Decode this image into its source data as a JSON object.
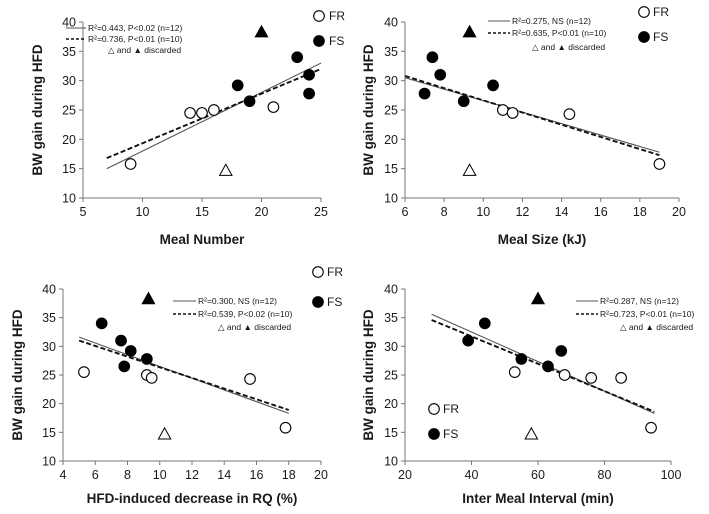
{
  "chart_data": [
    {
      "type": "scatter",
      "xlabel": "Meal Number",
      "ylabel": "BW gain during HFD",
      "xlim": [
        5,
        25
      ],
      "ylim": [
        10,
        40
      ],
      "xticks": [
        "5",
        "10",
        "15",
        "20",
        "25"
      ],
      "yticks": [
        "10",
        "15",
        "20",
        "25",
        "30",
        "35",
        "40"
      ],
      "groups": [
        {
          "label": "FR",
          "marker": "open-circle"
        },
        {
          "label": "FS",
          "marker": "filled-circle"
        }
      ],
      "group_legend_position": "top-right",
      "stats_legend_position": "top-left",
      "series": [
        {
          "name": "FR",
          "marker": "open-circle",
          "x": [
            9,
            14,
            15,
            16,
            21
          ],
          "y": [
            15.8,
            24.5,
            24.5,
            25,
            25.5
          ]
        },
        {
          "name": "FS",
          "marker": "filled-circle",
          "x": [
            18,
            19,
            23,
            24,
            24
          ],
          "y": [
            29.2,
            26.5,
            34,
            31,
            27.8
          ]
        },
        {
          "name": "FR discarded",
          "marker": "open-triangle",
          "x": [
            17
          ],
          "y": [
            14.7
          ]
        },
        {
          "name": "FS discarded",
          "marker": "filled-triangle",
          "x": [
            20
          ],
          "y": [
            38.3
          ]
        }
      ],
      "fits": [
        {
          "label": "R²=0.443, P<0.02 (n=12)",
          "style": "solid",
          "x": [
            7,
            25
          ],
          "y": [
            15,
            33
          ]
        },
        {
          "label": "R²=0.736, P<0.01 (n=10)",
          "style": "dashed",
          "x": [
            7,
            25
          ],
          "y": [
            16.8,
            32
          ]
        }
      ],
      "discard_note": "△ and ▲ discarded"
    },
    {
      "type": "scatter",
      "xlabel": "Meal Size (kJ)",
      "ylabel": "BW gain during HFD",
      "xlim": [
        6,
        20
      ],
      "ylim": [
        10,
        40
      ],
      "xticks": [
        "6",
        "8",
        "10",
        "12",
        "14",
        "16",
        "18",
        "20"
      ],
      "yticks": [
        "10",
        "15",
        "20",
        "25",
        "30",
        "35",
        "40"
      ],
      "groups": [
        {
          "label": "FR",
          "marker": "open-circle"
        },
        {
          "label": "FS",
          "marker": "filled-circle"
        }
      ],
      "group_legend_position": "top-right",
      "stats_legend_position": "top-right",
      "series": [
        {
          "name": "FR",
          "marker": "open-circle",
          "x": [
            11,
            11.5,
            14.4,
            19
          ],
          "y": [
            25,
            24.5,
            24.3,
            15.8
          ]
        },
        {
          "name": "FS",
          "marker": "filled-circle",
          "x": [
            7,
            7.4,
            7.8,
            9,
            10.5
          ],
          "y": [
            27.8,
            34,
            31,
            26.5,
            29.2
          ]
        },
        {
          "name": "FR discarded",
          "marker": "open-triangle",
          "x": [
            9.3
          ],
          "y": [
            14.7
          ]
        },
        {
          "name": "FS discarded",
          "marker": "filled-triangle",
          "x": [
            9.3
          ],
          "y": [
            38.3
          ]
        }
      ],
      "fits": [
        {
          "label": "R²=0.275, NS (n=12)",
          "style": "solid",
          "x": [
            6,
            19
          ],
          "y": [
            30.5,
            17.8
          ]
        },
        {
          "label": "R²=0.635, P<0.01 (n=10)",
          "style": "dashed",
          "x": [
            6,
            19
          ],
          "y": [
            30.8,
            17.3
          ]
        }
      ],
      "discard_note": "△ and ▲ discarded"
    },
    {
      "type": "scatter",
      "xlabel": "HFD-induced decrease in RQ (%)",
      "ylabel": "BW gain during HFD",
      "xlim": [
        4,
        20
      ],
      "ylim": [
        10,
        40
      ],
      "xticks": [
        "4",
        "6",
        "8",
        "10",
        "12",
        "14",
        "16",
        "18",
        "20"
      ],
      "yticks": [
        "10",
        "15",
        "20",
        "25",
        "30",
        "35",
        "40"
      ],
      "groups": [
        {
          "label": "FR",
          "marker": "open-circle"
        },
        {
          "label": "FS",
          "marker": "filled-circle"
        }
      ],
      "group_legend_position": "top-right",
      "stats_legend_position": "top-right",
      "series": [
        {
          "name": "FR",
          "marker": "open-circle",
          "x": [
            5.3,
            9.2,
            9.5,
            15.6,
            17.8
          ],
          "y": [
            25.5,
            25,
            24.5,
            24.3,
            15.8
          ]
        },
        {
          "name": "FS",
          "marker": "filled-circle",
          "x": [
            6.4,
            7.6,
            7.8,
            8.2,
            9.2
          ],
          "y": [
            34,
            31,
            26.5,
            29.2,
            27.8
          ]
        },
        {
          "name": "FR discarded",
          "marker": "open-triangle",
          "x": [
            10.3
          ],
          "y": [
            14.7
          ]
        },
        {
          "name": "FS discarded",
          "marker": "filled-triangle",
          "x": [
            9.3
          ],
          "y": [
            38.3
          ]
        }
      ],
      "fits": [
        {
          "label": "R²=0.300, NS (n=12)",
          "style": "solid",
          "x": [
            5,
            18
          ],
          "y": [
            31.6,
            18.3
          ]
        },
        {
          "label": "R²=0.539, P<0.02 (n=10)",
          "style": "dashed",
          "x": [
            5,
            18
          ],
          "y": [
            31,
            18.9
          ]
        }
      ],
      "discard_note": "△ and ▲ discarded"
    },
    {
      "type": "scatter",
      "xlabel": "Inter Meal Interval (min)",
      "ylabel": "BW gain during HFD",
      "xlim": [
        20,
        100
      ],
      "ylim": [
        10,
        40
      ],
      "xticks": [
        "20",
        "40",
        "60",
        "80",
        "100"
      ],
      "yticks": [
        "10",
        "15",
        "20",
        "25",
        "30",
        "35",
        "40"
      ],
      "groups": [
        {
          "label": "FR",
          "marker": "open-circle"
        },
        {
          "label": "FS",
          "marker": "filled-circle"
        }
      ],
      "group_legend_position": "bottom-left",
      "stats_legend_position": "top-right",
      "series": [
        {
          "name": "FR",
          "marker": "open-circle",
          "x": [
            53,
            68,
            76,
            85,
            94
          ],
          "y": [
            25.5,
            25,
            24.5,
            24.5,
            15.8
          ]
        },
        {
          "name": "FS",
          "marker": "filled-circle",
          "x": [
            39,
            44,
            55,
            63,
            67
          ],
          "y": [
            31,
            34,
            27.8,
            26.5,
            29.2
          ]
        },
        {
          "name": "FR discarded",
          "marker": "open-triangle",
          "x": [
            58
          ],
          "y": [
            14.7
          ]
        },
        {
          "name": "FS discarded",
          "marker": "filled-triangle",
          "x": [
            60
          ],
          "y": [
            38.3
          ]
        }
      ],
      "fits": [
        {
          "label": "R²=0.287, NS (n=12)",
          "style": "solid",
          "x": [
            28,
            95
          ],
          "y": [
            35.6,
            18.3
          ]
        },
        {
          "label": "R²=0.723, P<0.01 (n=10)",
          "style": "dashed",
          "x": [
            28,
            95
          ],
          "y": [
            34.6,
            18.6
          ]
        }
      ],
      "discard_note": "△ and ▲ discarded"
    }
  ]
}
